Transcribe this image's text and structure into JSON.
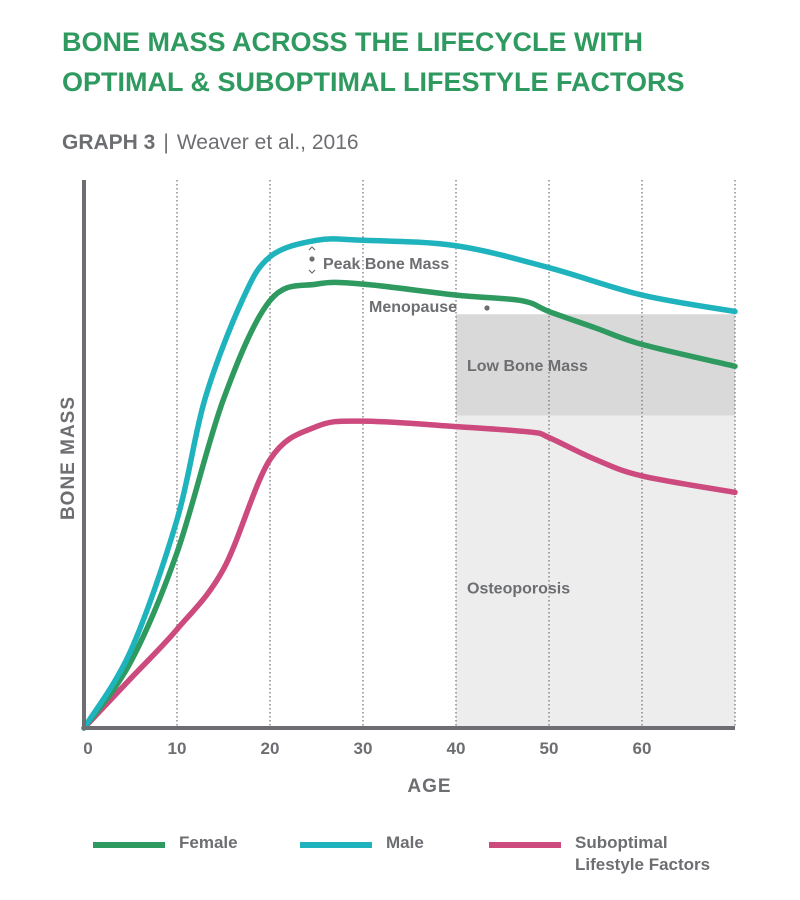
{
  "header": {
    "title_line1": "BONE MASS ACROSS THE LIFECYCLE WITH",
    "title_line2": "OPTIMAL & SUBOPTIMAL LIFESTYLE FACTORS",
    "graph_label": "GRAPH 3",
    "separator": "|",
    "source": "Weaver et al., 2016"
  },
  "colors": {
    "title": "#2e9a5f",
    "text": "#6d6e71",
    "axis": "#6d6e71",
    "female": "#2e9a5f",
    "male": "#1eb3bd",
    "suboptimal": "#cc4a7e",
    "low_bone_mass_band": "#d9d9da",
    "osteoporosis_band": "#ededee"
  },
  "chart_data": {
    "type": "line",
    "title": "BONE MASS ACROSS THE LIFECYCLE WITH OPTIMAL & SUBOPTIMAL LIFESTYLE FACTORS",
    "subtitle": "GRAPH 3 | Weaver et al., 2016",
    "xlabel": "AGE",
    "ylabel": "BONE MASS",
    "xlim": [
      0,
      70
    ],
    "ylim": [
      0,
      100
    ],
    "xticks": [
      0,
      10,
      20,
      30,
      40,
      50,
      60
    ],
    "xtick_labels": [
      "0",
      "10",
      "20",
      "30",
      "40",
      "50",
      "60"
    ],
    "x_gridlines": [
      10,
      20,
      30,
      40,
      50,
      60,
      70
    ],
    "grid": "vertical-dotted",
    "y_units": "relative (no ticks shown)",
    "series": [
      {
        "name": "Female",
        "key": "female",
        "points": [
          [
            0,
            0
          ],
          [
            5,
            12
          ],
          [
            10,
            32
          ],
          [
            15,
            60
          ],
          [
            20,
            78
          ],
          [
            25,
            81
          ],
          [
            30,
            81
          ],
          [
            40,
            79
          ],
          [
            47,
            78
          ],
          [
            50,
            76
          ],
          [
            55,
            73
          ],
          [
            60,
            70
          ],
          [
            70,
            66
          ]
        ]
      },
      {
        "name": "Male",
        "key": "male",
        "points": [
          [
            0,
            0
          ],
          [
            5,
            14
          ],
          [
            10,
            38
          ],
          [
            13,
            60
          ],
          [
            17,
            78
          ],
          [
            20,
            86
          ],
          [
            25,
            89
          ],
          [
            30,
            89
          ],
          [
            40,
            88
          ],
          [
            50,
            84
          ],
          [
            60,
            79
          ],
          [
            70,
            76
          ]
        ]
      },
      {
        "name": "Suboptimal Lifestyle Factors",
        "key": "suboptimal",
        "points": [
          [
            0,
            0
          ],
          [
            5,
            9
          ],
          [
            10,
            18
          ],
          [
            15,
            29
          ],
          [
            20,
            49
          ],
          [
            25,
            55
          ],
          [
            30,
            56
          ],
          [
            40,
            55
          ],
          [
            48,
            54
          ],
          [
            50,
            53
          ],
          [
            55,
            49
          ],
          [
            60,
            46
          ],
          [
            70,
            43
          ]
        ]
      }
    ],
    "regions": [
      {
        "name": "Low Bone Mass",
        "x_range": [
          40,
          70
        ],
        "y_range": [
          57,
          75.5
        ]
      },
      {
        "name": "Osteoporosis",
        "x_range": [
          40,
          70
        ],
        "y_range": [
          0,
          57
        ]
      }
    ],
    "annotations": [
      {
        "text": "Peak Bone Mass",
        "x": 25,
        "y": 85,
        "marker": "double-arrow-dot"
      },
      {
        "text": "Menopause",
        "x": 43,
        "y": 77,
        "marker": "dot-right"
      }
    ],
    "legend": {
      "placement": "bottom",
      "entries": [
        {
          "label": "Female",
          "key": "female"
        },
        {
          "label": "Male",
          "key": "male"
        },
        {
          "label": "Suboptimal\nLifestyle Factors",
          "key": "suboptimal"
        }
      ]
    }
  }
}
